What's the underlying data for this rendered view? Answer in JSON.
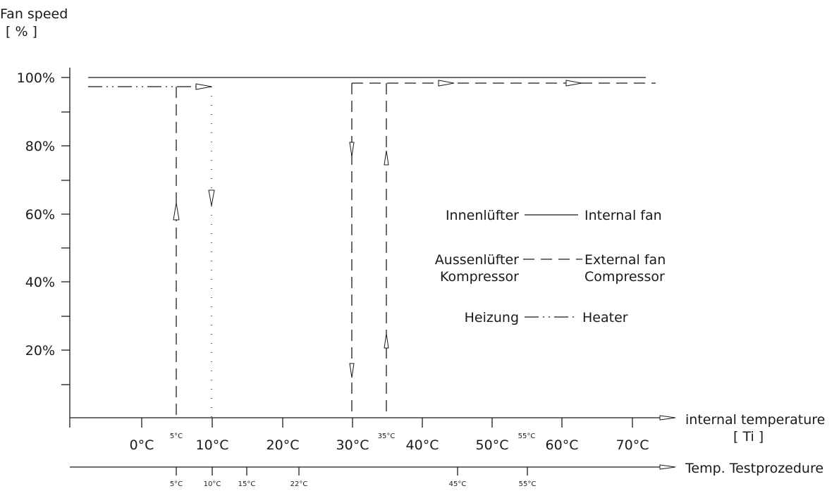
{
  "y_title": "Fan speed",
  "y_unit": "[ % ]",
  "x_title": "internal temperature",
  "x_unit": "[ Ti ]",
  "x2_title": "Temp. Testprozedure",
  "legend": {
    "internal_fan": {
      "de": "Innenlüfter",
      "en": "Internal fan"
    },
    "external_fan": {
      "de": "Aussenlüfter",
      "en": "External fan"
    },
    "compressor": {
      "de": "Kompressor",
      "en": "Compressor"
    },
    "heater": {
      "de": "Heizung",
      "en": "Heater"
    }
  },
  "chart_data": {
    "type": "line",
    "y_ticks": [
      "100%",
      "80%",
      "60%",
      "40%",
      "20%"
    ],
    "x_ticks": [
      "0°C",
      "10°C",
      "20°C",
      "30°C",
      "40°C",
      "50°C",
      "60°C",
      "70°C"
    ],
    "x_small_labels": [
      "5°C",
      "35°C",
      "55°C"
    ],
    "x2_ticks": [
      "5°C",
      "10°C",
      "15°C",
      "22°C",
      "45°C",
      "55°C"
    ],
    "ylim": [
      0,
      100
    ],
    "series": [
      {
        "name": "Internal fan",
        "style": "solid",
        "points": [
          [
            -10,
            100
          ],
          [
            72,
            100
          ]
        ]
      },
      {
        "name": "Heater",
        "style": "dash-dot",
        "points": [
          [
            -10,
            97
          ],
          [
            10,
            97
          ]
        ],
        "switch_on": 5,
        "switch_off": 10
      },
      {
        "name": "External fan",
        "style": "dash",
        "points": [
          [
            30,
            98
          ],
          [
            73,
            98
          ]
        ],
        "switch_on": 35,
        "switch_off": 30
      }
    ]
  }
}
